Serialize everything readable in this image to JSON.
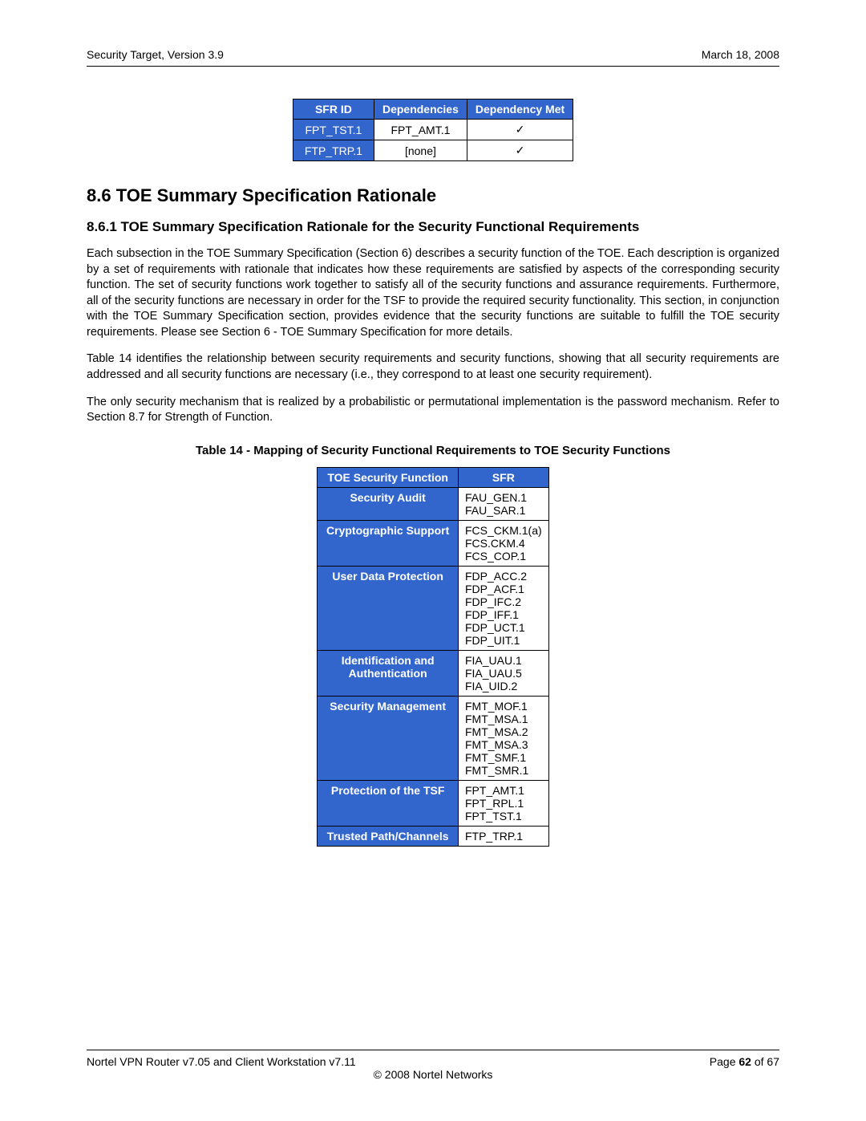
{
  "header": {
    "left": "Security Target, Version 3.9",
    "right": "March 18, 2008"
  },
  "table1": {
    "headers": [
      "SFR ID",
      "Dependencies",
      "Dependency Met"
    ],
    "rows": [
      {
        "sfr": "FPT_TST.1",
        "dep": "FPT_AMT.1",
        "met": "✓"
      },
      {
        "sfr": "FTP_TRP.1",
        "dep": "[none]",
        "met": "✓"
      }
    ]
  },
  "h2": "8.6  TOE Summary Specification Rationale",
  "h3": "8.6.1 TOE Summary Specification Rationale for the Security Functional Requirements",
  "p1": "Each subsection in the TOE Summary Specification (Section 6) describes a security function of the TOE.  Each description is organized by a set of requirements with rationale that indicates how these requirements are satisfied by aspects of the corresponding security function.  The set of security functions work together to satisfy all of the security functions and assurance requirements.  Furthermore, all of the security functions are necessary in order for the TSF to provide the required security functionality.  This section, in conjunction with the TOE Summary Specification section, provides evidence that the security functions are suitable to fulfill the TOE security requirements.  Please see Section 6 - TOE Summary Specification for more details.",
  "p2": "Table 14 identifies the relationship between security requirements and security functions, showing that all security requirements are addressed and all security functions are necessary (i.e., they correspond to at least one security requirement).",
  "p3": "The only security mechanism that is realized by a probabilistic or permutational implementation is the password mechanism.  Refer to Section 8.7 for Strength of Function.",
  "table2caption": "Table 14 - Mapping of Security Functional Requirements to TOE Security Functions",
  "table2": {
    "headers": [
      "TOE Security Function",
      "SFR"
    ],
    "rows": [
      {
        "fn": "Security Audit",
        "sfr": "FAU_GEN.1\nFAU_SAR.1"
      },
      {
        "fn": "Cryptographic Support",
        "sfr": "FCS_CKM.1(a)\nFCS.CKM.4\nFCS_COP.1"
      },
      {
        "fn": "User Data Protection",
        "sfr": "FDP_ACC.2\nFDP_ACF.1\nFDP_IFC.2\nFDP_IFF.1\nFDP_UCT.1\nFDP_UIT.1"
      },
      {
        "fn": "Identification and\nAuthentication",
        "sfr": "FIA_UAU.1\nFIA_UAU.5\nFIA_UID.2"
      },
      {
        "fn": "Security Management",
        "sfr": "FMT_MOF.1\nFMT_MSA.1\nFMT_MSA.2\nFMT_MSA.3\nFMT_SMF.1\nFMT_SMR.1"
      },
      {
        "fn": "Protection of the TSF",
        "sfr": "FPT_AMT.1\nFPT_RPL.1\nFPT_TST.1"
      },
      {
        "fn": "Trusted Path/Channels",
        "sfr": "FTP_TRP.1"
      }
    ]
  },
  "footer": {
    "left": "Nortel VPN Router v7.05 and Client Workstation v7.11",
    "right_prefix": "Page ",
    "page_cur": "62",
    "right_mid": " of ",
    "page_total": "67",
    "copyright": "© 2008 Nortel Networks"
  }
}
